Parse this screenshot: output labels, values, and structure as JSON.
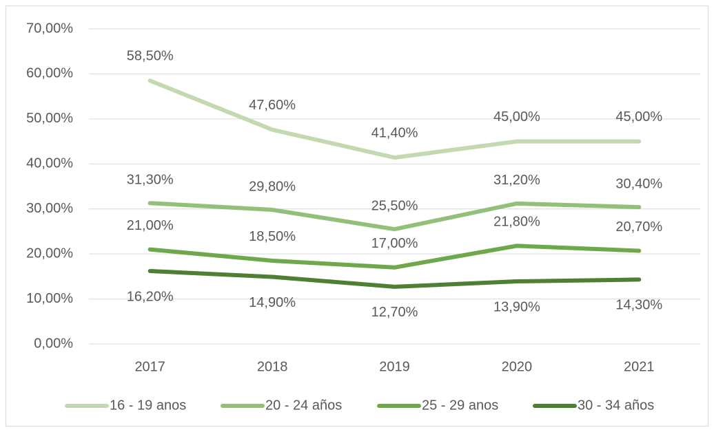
{
  "chart_data": {
    "type": "line",
    "categories": [
      "2017",
      "2018",
      "2019",
      "2020",
      "2021"
    ],
    "series": [
      {
        "name": "16 - 19 anos",
        "color": "#c3d9b1",
        "values": [
          58.5,
          47.6,
          41.4,
          45.0,
          45.0
        ],
        "value_labels": [
          "58,50%",
          "47,60%",
          "41,40%",
          "45,00%",
          "45,00%"
        ]
      },
      {
        "name": "20 - 24 años",
        "color": "#94bf7a",
        "values": [
          31.3,
          29.8,
          25.5,
          31.2,
          30.4
        ],
        "value_labels": [
          "31,30%",
          "29,80%",
          "25,50%",
          "31,20%",
          "30,40%"
        ]
      },
      {
        "name": "25 - 29 anos",
        "color": "#6ea84a",
        "values": [
          21.0,
          18.5,
          17.0,
          21.8,
          20.7
        ],
        "value_labels": [
          "21,00%",
          "18,50%",
          "17,00%",
          "21,80%",
          "20,70%"
        ]
      },
      {
        "name": "30 - 34 años",
        "color": "#4d8034",
        "values": [
          16.2,
          14.9,
          12.7,
          13.9,
          14.3
        ],
        "value_labels": [
          "16,20%",
          "14,90%",
          "12,70%",
          "13,90%",
          "14,30%"
        ]
      }
    ],
    "ylim": [
      0,
      70
    ],
    "yticks": [
      {
        "value": 0,
        "label": "0,00%"
      },
      {
        "value": 10,
        "label": "10,00%"
      },
      {
        "value": 20,
        "label": "20,00%"
      },
      {
        "value": 30,
        "label": "30,00%"
      },
      {
        "value": 40,
        "label": "40,00%"
      },
      {
        "value": 50,
        "label": "50,00%"
      },
      {
        "value": 60,
        "label": "60,00%"
      },
      {
        "value": 70,
        "label": "70,00%"
      }
    ],
    "grid": true,
    "legend": "bottom"
  }
}
